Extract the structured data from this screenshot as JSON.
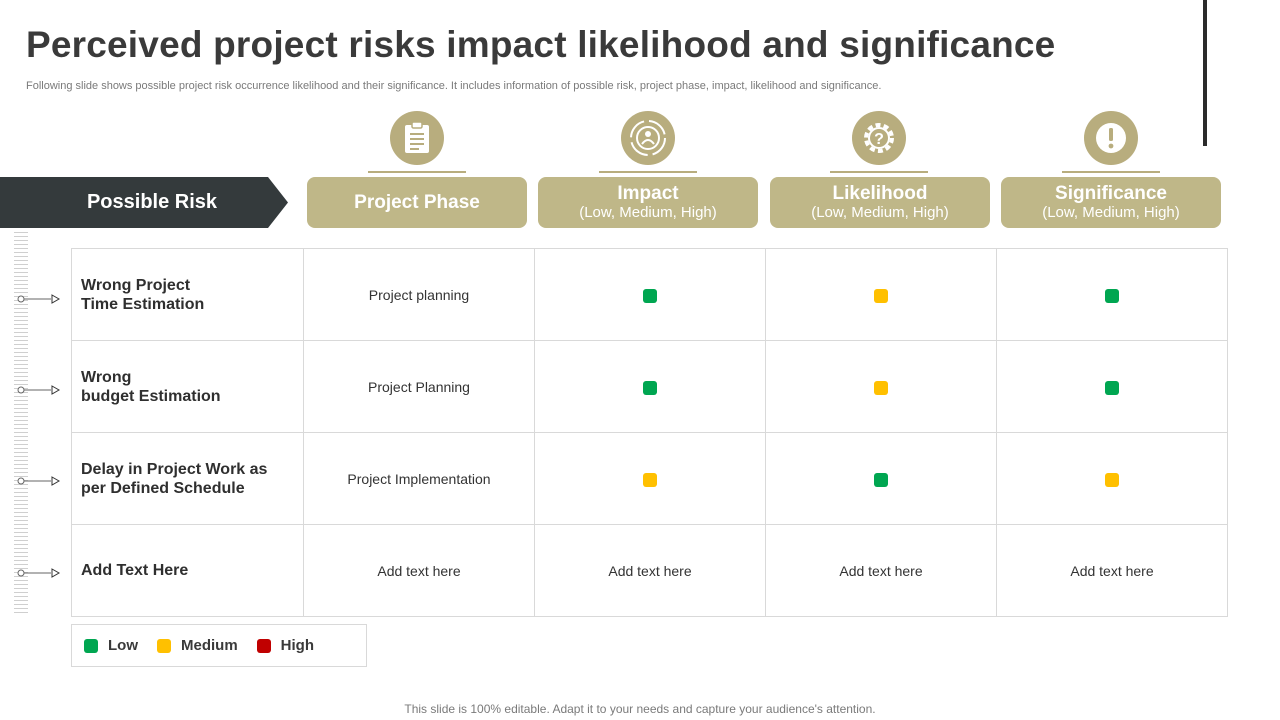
{
  "title": "Perceived project risks impact likelihood and significance",
  "subtitle": "Following slide shows possible project risk occurrence likelihood and their significance. It includes information of possible risk, project phase, impact, likelihood and significance.",
  "colors": {
    "low": "#00a651",
    "medium": "#ffc000",
    "high": "#c00000",
    "accent": "#bfb788",
    "dark": "#343a3c"
  },
  "headers": {
    "risk": "Possible  Risk",
    "columns": [
      {
        "label": "Project Phase",
        "sub": "",
        "icon": "clipboard-icon"
      },
      {
        "label": "Impact",
        "sub": "(Low, Medium, High)",
        "icon": "target-icon"
      },
      {
        "label": "Likelihood",
        "sub": "(Low, Medium, High)",
        "icon": "gear-question-icon"
      },
      {
        "label": "Significance",
        "sub": "(Low, Medium, High)",
        "icon": "exclamation-icon"
      }
    ]
  },
  "rows": [
    {
      "risk_line1": "Wrong Project",
      "risk_line2": "Time Estimation",
      "phase": "Project planning",
      "impact": "low",
      "likelihood": "medium",
      "significance": "low"
    },
    {
      "risk_line1": "Wrong",
      "risk_line2": "budget Estimation",
      "phase": "Project Planning",
      "impact": "low",
      "likelihood": "medium",
      "significance": "low"
    },
    {
      "risk_line1": "Delay in Project Work as",
      "risk_line2": "per Defined Schedule",
      "phase": "Project Implementation",
      "impact": "medium",
      "likelihood": "low",
      "significance": "medium"
    },
    {
      "risk_line1": "Add Text Here",
      "risk_line2": "",
      "phase": "Add text here",
      "impact": "Add text here",
      "likelihood": "Add text here",
      "significance": "Add text here"
    }
  ],
  "legend": [
    {
      "label": "Low",
      "level": "low"
    },
    {
      "label": "Medium",
      "level": "medium"
    },
    {
      "label": "High",
      "level": "high"
    }
  ],
  "footer": "This slide is 100% editable. Adapt it to your needs and capture your audience's attention."
}
